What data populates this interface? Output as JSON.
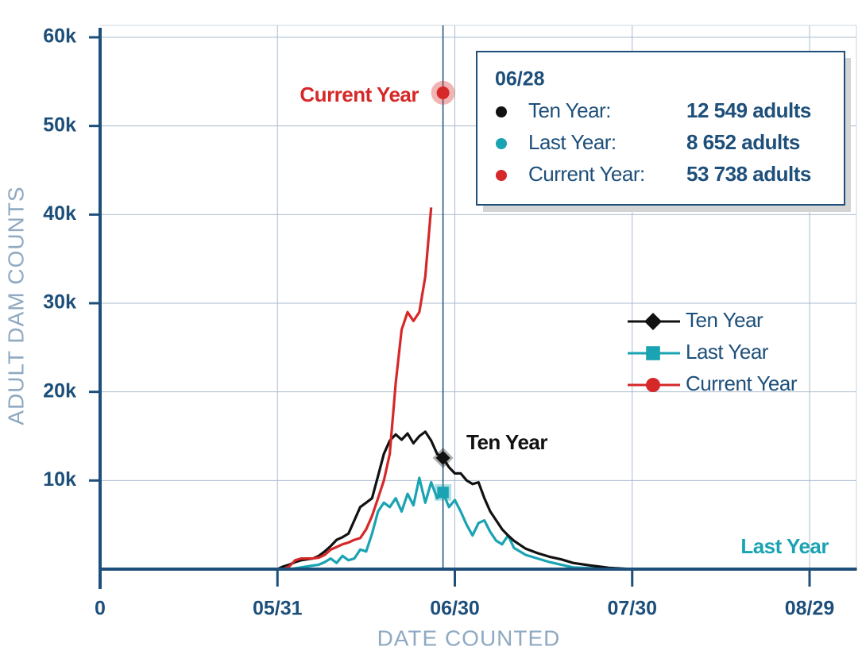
{
  "chart_data": {
    "type": "line",
    "x_label": "DATE COUNTED",
    "y_label": "ADULT DAM COUNTS",
    "x": [
      0,
      30,
      31,
      32,
      33,
      34,
      35,
      36,
      37,
      38,
      39,
      40,
      41,
      42,
      43,
      44,
      45,
      46,
      47,
      48,
      49,
      50,
      51,
      52,
      53,
      54,
      55,
      56,
      57,
      58,
      59,
      60,
      61,
      62,
      63,
      64,
      65,
      66,
      67,
      68,
      69,
      70,
      72,
      74,
      76,
      78,
      80,
      83,
      86,
      90,
      128
    ],
    "series": [
      {
        "name": "Ten Year",
        "color": "#111111",
        "marker": "diamond",
        "values": [
          0,
          0,
          300,
          500,
          800,
          1000,
          1100,
          1200,
          1500,
          2000,
          2600,
          3300,
          3600,
          4000,
          5500,
          7000,
          7500,
          8000,
          10500,
          13000,
          14500,
          15200,
          14600,
          15300,
          14200,
          15000,
          15500,
          14500,
          13000,
          12549,
          11500,
          10800,
          10800,
          10000,
          9600,
          9800,
          8000,
          6500,
          5500,
          4500,
          3800,
          3200,
          2300,
          1800,
          1400,
          1100,
          700,
          400,
          150,
          0,
          0
        ]
      },
      {
        "name": "Last Year",
        "color": "#1aa3b3",
        "marker": "square",
        "values": [
          0,
          0,
          0,
          0,
          100,
          200,
          300,
          400,
          500,
          800,
          1200,
          700,
          1500,
          1000,
          1200,
          2200,
          2000,
          4000,
          6500,
          7500,
          7000,
          8000,
          6500,
          8500,
          7200,
          10300,
          7500,
          9800,
          8000,
          8652,
          7000,
          7800,
          6500,
          5000,
          3800,
          5200,
          5500,
          4200,
          3200,
          2800,
          3800,
          2400,
          1600,
          1200,
          800,
          500,
          200,
          100,
          50,
          0,
          0
        ]
      },
      {
        "name": "Current Year",
        "color": "#d62828",
        "marker": "circle",
        "values": [
          0,
          0,
          0,
          300,
          1000,
          1200,
          1200,
          1200,
          1300,
          1600,
          2200,
          2500,
          2800,
          3000,
          3300,
          3500,
          4500,
          6000,
          8000,
          10000,
          13000,
          21000,
          27000,
          29000,
          28000,
          29000,
          33000,
          40800,
          null,
          53738,
          null,
          null,
          null,
          null,
          null,
          null,
          null,
          null,
          null,
          null,
          null,
          null,
          null,
          null,
          null,
          null,
          null,
          null,
          null,
          null,
          null
        ]
      }
    ],
    "xlim": [
      0,
      128
    ],
    "xticks": [
      0,
      {
        "value": 30,
        "label": "05/31"
      },
      {
        "value": 60,
        "label": "06/30"
      },
      {
        "value": 90,
        "label": "07/30"
      },
      {
        "value": 120,
        "label": "08/29"
      }
    ],
    "ylim": [
      0,
      60000
    ],
    "yticks": [
      {
        "value": 10000,
        "label": "10k"
      },
      {
        "value": 20000,
        "label": "20k"
      },
      {
        "value": 30000,
        "label": "30k"
      },
      {
        "value": 40000,
        "label": "40k"
      },
      {
        "value": 50000,
        "label": "50k"
      },
      {
        "value": 60000,
        "label": "60k"
      }
    ],
    "grid": true,
    "legend": "right",
    "tooltip": {
      "x": 58,
      "title": "06/28",
      "rows": [
        {
          "label": "Ten Year:",
          "value": "12 549 adults"
        },
        {
          "label": "Last Year:",
          "value": "8 652 adults"
        },
        {
          "label": "Current Year:",
          "value": "53 738 adults"
        }
      ]
    }
  }
}
